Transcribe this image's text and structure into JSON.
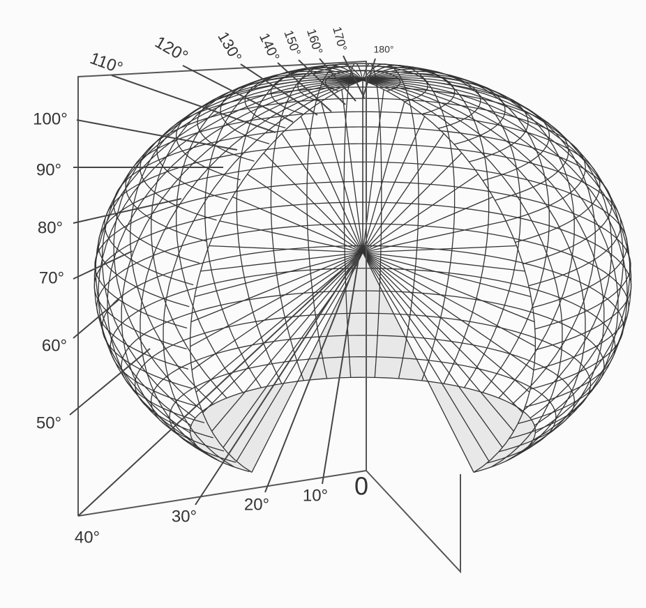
{
  "labels": {
    "a0": "0",
    "a10": "10°",
    "a20": "20°",
    "a30": "30°",
    "a40": "40°",
    "a50": "50°",
    "a60": "60°",
    "a70": "70°",
    "a80": "80°",
    "a90": "90°",
    "a100": "100°",
    "a110": "110°",
    "a120": "120°",
    "a130": "130°",
    "a140": "140°",
    "a150": "150°",
    "a160": "160°",
    "a170": "170°",
    "a180": "180°"
  }
}
